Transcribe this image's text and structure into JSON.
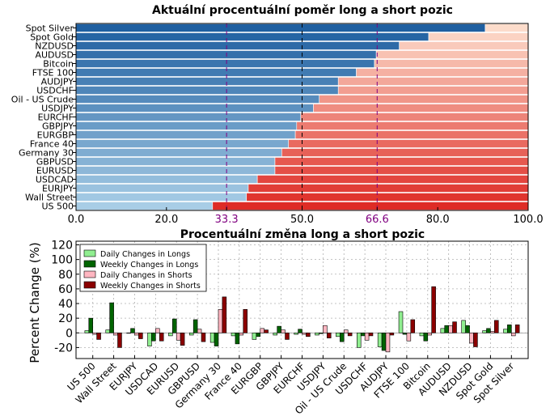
{
  "chart_data": [
    {
      "type": "bar",
      "orientation": "horizontal",
      "stacked": true,
      "title": "Aktuální procentuální poměr long a short pozic",
      "categories": [
        "US 500",
        "Wall Street",
        "EURJPY",
        "USDCAD",
        "EURUSD",
        "GBPUSD",
        "Germany 30",
        "France 40",
        "EURGBP",
        "GBPJPY",
        "EURCHF",
        "USDJPY",
        "Oil - US Crude",
        "USDCHF",
        "AUDJPY",
        "FTSE 100",
        "Bitcoin",
        "AUDUSD",
        "NZDUSD",
        "Spot Gold",
        "Spot Silver"
      ],
      "series": [
        {
          "key": "long",
          "values": [
            30.2,
            37.7,
            38.1,
            40.1,
            44.0,
            44.0,
            45.5,
            47.0,
            48.5,
            48.8,
            49.7,
            52.5,
            53.8,
            58.0,
            58.0,
            62.0,
            66.0,
            66.4,
            71.5,
            78.0,
            90.5
          ]
        },
        {
          "key": "short",
          "values": [
            69.8,
            62.3,
            61.9,
            59.9,
            56.0,
            56.0,
            54.5,
            53.0,
            51.5,
            51.2,
            50.3,
            47.5,
            46.2,
            42.0,
            42.0,
            38.0,
            34.0,
            33.6,
            28.5,
            22.0,
            9.5
          ]
        }
      ],
      "xlim": [
        0,
        100
      ],
      "xticks": [
        "0.0",
        "20.0",
        "33.3",
        "50.0",
        "66.6",
        "80.0",
        "100.0"
      ],
      "highlight_ticks": [
        "33.3",
        "66.6"
      ],
      "reference_lines": [
        33.3,
        50.0,
        66.6
      ],
      "colors": {
        "long": "#3a7dbd",
        "short": "#e8553f",
        "highlight": "#800080"
      }
    },
    {
      "type": "bar",
      "title": "Procentuální změna long a short pozic",
      "ylabel": "Percent Change (%)",
      "categories": [
        "US 500",
        "Wall Street",
        "EURJPY",
        "USDCAD",
        "EURUSD",
        "GBPUSD",
        "Germany 30",
        "France 40",
        "EURGBP",
        "GBPJPY",
        "EURCHF",
        "USDJPY",
        "Oil - US Crude",
        "USDCHF",
        "AUDJPY",
        "FTSE 100",
        "Bitcoin",
        "AUDUSD",
        "NZDUSD",
        "Spot Gold",
        "Spot Silver"
      ],
      "ylim": [
        -35,
        125
      ],
      "yticks": [
        -20,
        0,
        20,
        40,
        60,
        80,
        100,
        120
      ],
      "grid": true,
      "legend": "top-left",
      "series": [
        {
          "name": "Daily Changes in Longs",
          "color": "#90ee90",
          "values": [
            3,
            4,
            0,
            -18,
            -4,
            -3,
            -13,
            -4,
            -9,
            -3,
            -2,
            -3,
            -5,
            -20,
            -19,
            29,
            -4,
            6,
            17,
            3,
            5
          ]
        },
        {
          "name": "Weekly Changes in Longs",
          "color": "#006400",
          "values": [
            20,
            41,
            6,
            -11,
            19,
            18,
            -18,
            -15,
            -5,
            9,
            5,
            -1,
            -12,
            -4,
            -24,
            -2,
            -11,
            10,
            10,
            6,
            11
          ]
        },
        {
          "name": "Daily Changes in Shorts",
          "color": "#ffb6c1",
          "values": [
            -2,
            -3,
            -3,
            6,
            -10,
            5,
            32,
            -3,
            6,
            4,
            -2,
            10,
            4,
            -10,
            -26,
            -11,
            -3,
            10,
            -14,
            2,
            -4
          ]
        },
        {
          "name": "Weekly Changes in Shorts",
          "color": "#8b0000",
          "values": [
            -9,
            -20,
            -8,
            -11,
            -17,
            -12,
            49,
            32,
            4,
            -9,
            -5,
            -7,
            -4,
            -4,
            -3,
            18,
            63,
            15,
            -19,
            17,
            11
          ]
        }
      ]
    }
  ]
}
